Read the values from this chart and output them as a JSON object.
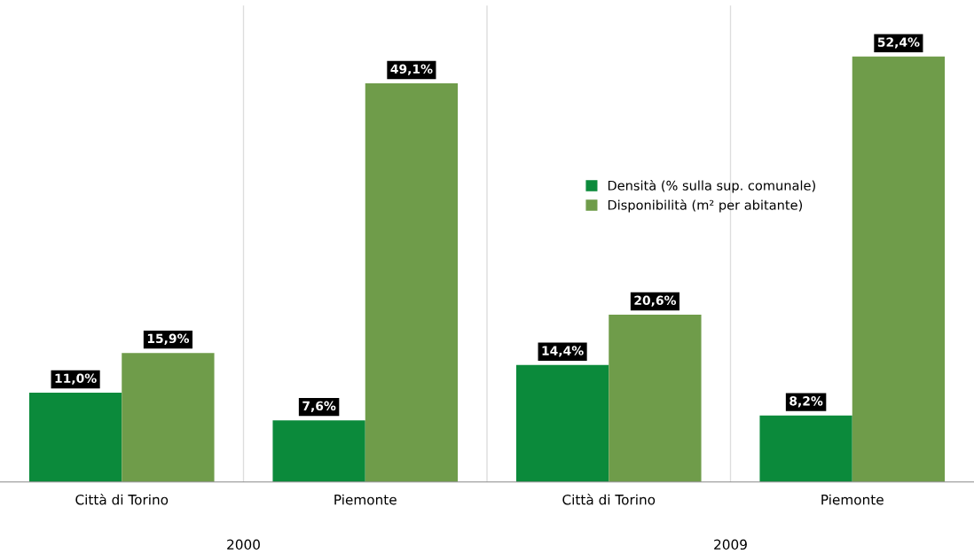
{
  "chart_data": {
    "type": "bar",
    "categories": [
      "Città di Torino",
      "Piemonte",
      "Città di Torino",
      "Piemonte"
    ],
    "series": [
      {
        "name": "Densità (% sulla sup. comunale)",
        "color": "#0b8a3b",
        "values": [
          11.0,
          7.6,
          14.4,
          8.2
        ],
        "value_labels": [
          "11,0%",
          "7,6%",
          "14,4%",
          "8,2%"
        ]
      },
      {
        "name": "Disponibilità (m² per abitante)",
        "color": "#6f9c4a",
        "values": [
          15.9,
          49.1,
          20.6,
          52.4
        ],
        "value_labels": [
          "15,9%",
          "49,1%",
          "20,6%",
          "52,4%"
        ]
      }
    ],
    "annotations": [
      "2000",
      "2009"
    ],
    "legend": "center right",
    "grid": false
  }
}
